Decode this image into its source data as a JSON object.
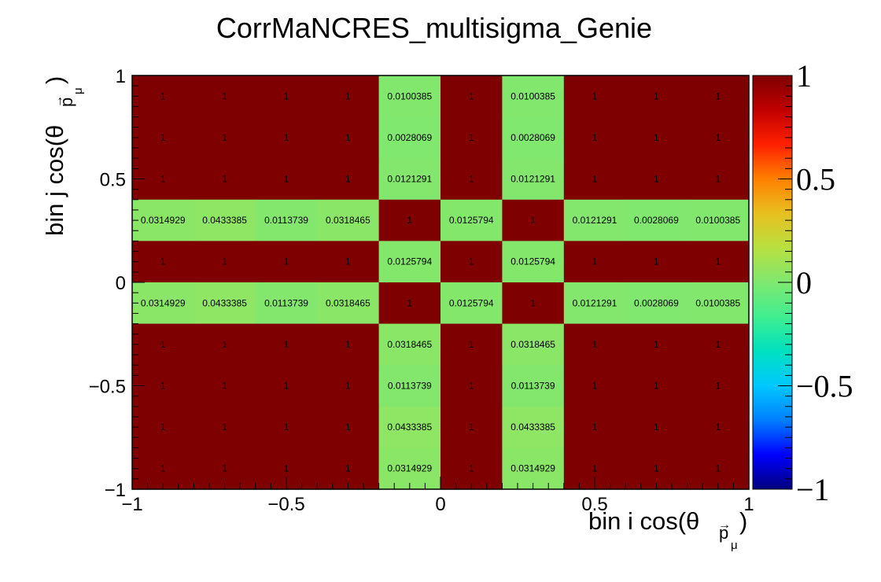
{
  "chart_data": {
    "type": "heatmap",
    "title": "CorrMaNCRES_multisigma_Genie",
    "xlabel": "bin i cos(θ",
    "ylabel": "bin j cos(θ",
    "xlabel_sub": "p",
    "ylabel_sub": "p",
    "xlabel_subsub": "μ",
    "ylabel_subsub": "μ",
    "xlabel_close": ")",
    "ylabel_close": ")",
    "xlim": [
      -1,
      1
    ],
    "ylim": [
      -1,
      1
    ],
    "zlim": [
      -1,
      1
    ],
    "x_bin_edges": [
      -1,
      -0.8,
      -0.6,
      -0.4,
      -0.2,
      0,
      0.2,
      0.4,
      0.6,
      0.8,
      1
    ],
    "y_bin_edges": [
      -1,
      -0.8,
      -0.6,
      -0.4,
      -0.2,
      0,
      0.2,
      0.4,
      0.6,
      0.8,
      1
    ],
    "x_tick_labels": [
      {
        "value": -1,
        "label": "−1"
      },
      {
        "value": -0.5,
        "label": "−0.5"
      },
      {
        "value": 0,
        "label": "0"
      },
      {
        "value": 0.5,
        "label": "0.5"
      },
      {
        "value": 1,
        "label": "1"
      }
    ],
    "y_tick_labels": [
      {
        "value": -1,
        "label": "−1"
      },
      {
        "value": -0.5,
        "label": "−0.5"
      },
      {
        "value": 0,
        "label": "0"
      },
      {
        "value": 0.5,
        "label": "0.5"
      },
      {
        "value": 1,
        "label": "1"
      }
    ],
    "z_tick_labels": [
      {
        "value": -1,
        "label": "−1"
      },
      {
        "value": -0.5,
        "label": "−0.5"
      },
      {
        "value": 0,
        "label": "0"
      },
      {
        "value": 0.5,
        "label": "0.5"
      },
      {
        "value": 1,
        "label": "1"
      }
    ],
    "cells_rows_top_to_bottom": [
      {
        "values": [
          1,
          1,
          1,
          1,
          0.0100385,
          1,
          0.0100385,
          1,
          1,
          1
        ],
        "labels": [
          "1",
          "1",
          "1",
          "1",
          "0.0100385",
          "1",
          "0.0100385",
          "1",
          "1",
          "1"
        ]
      },
      {
        "values": [
          1,
          1,
          1,
          1,
          0.0028069,
          1,
          0.0028069,
          1,
          1,
          1
        ],
        "labels": [
          "1",
          "1",
          "1",
          "1",
          "0.0028069",
          "1",
          "0.0028069",
          "1",
          "1",
          "1"
        ]
      },
      {
        "values": [
          1,
          1,
          1,
          1,
          0.0121291,
          1,
          0.0121291,
          1,
          1,
          1
        ],
        "labels": [
          "1",
          "1",
          "1",
          "1",
          "0.0121291",
          "1",
          "0.0121291",
          "1",
          "1",
          "1"
        ]
      },
      {
        "values": [
          0.0314929,
          0.0433385,
          0.0113739,
          0.0318465,
          1,
          0.0125794,
          1,
          0.0121291,
          0.0028069,
          0.0100385
        ],
        "labels": [
          "0.0314929",
          "0.0433385",
          "0.0113739",
          "0.0318465",
          "1",
          "0.0125794",
          "1",
          "0.0121291",
          "0.0028069",
          "0.0100385"
        ]
      },
      {
        "values": [
          1,
          1,
          1,
          1,
          0.0125794,
          1,
          0.0125794,
          1,
          1,
          1
        ],
        "labels": [
          "1",
          "1",
          "1",
          "1",
          "0.0125794",
          "1",
          "0.0125794",
          "1",
          "1",
          "1"
        ]
      },
      {
        "values": [
          0.0314929,
          0.0433385,
          0.0113739,
          0.0318465,
          1,
          0.0125794,
          1,
          0.0121291,
          0.0028069,
          0.0100385
        ],
        "labels": [
          "0.0314929",
          "0.0433385",
          "0.0113739",
          "0.0318465",
          "1",
          "0.0125794",
          "1",
          "0.0121291",
          "0.0028069",
          "0.0100385"
        ]
      },
      {
        "values": [
          1,
          1,
          1,
          1,
          0.0318465,
          1,
          0.0318465,
          1,
          1,
          1
        ],
        "labels": [
          "1",
          "1",
          "1",
          "1",
          "0.0318465",
          "1",
          "0.0318465",
          "1",
          "1",
          "1"
        ]
      },
      {
        "values": [
          1,
          1,
          1,
          1,
          0.0113739,
          1,
          0.0113739,
          1,
          1,
          1
        ],
        "labels": [
          "1",
          "1",
          "1",
          "1",
          "0.0113739",
          "1",
          "0.0113739",
          "1",
          "1",
          "1"
        ]
      },
      {
        "values": [
          1,
          1,
          1,
          1,
          0.0433385,
          1,
          0.0433385,
          1,
          1,
          1
        ],
        "labels": [
          "1",
          "1",
          "1",
          "1",
          "0.0433385",
          "1",
          "0.0433385",
          "1",
          "1",
          "1"
        ]
      },
      {
        "values": [
          1,
          1,
          1,
          1,
          0.0314929,
          1,
          0.0314929,
          1,
          1,
          1
        ],
        "labels": [
          "1",
          "1",
          "1",
          "1",
          "0.0314929",
          "1",
          "0.0314929",
          "1",
          "1",
          "1"
        ]
      }
    ],
    "palette": [
      "#00007f",
      "#0000ff",
      "#007fff",
      "#00c8ff",
      "#00e0c0",
      "#40ee90",
      "#7fe870",
      "#b8e040",
      "#e8c020",
      "#ff8000",
      "#ff2000",
      "#c00000",
      "#7f0000"
    ],
    "grid": false,
    "legend": "colorbar-right"
  }
}
